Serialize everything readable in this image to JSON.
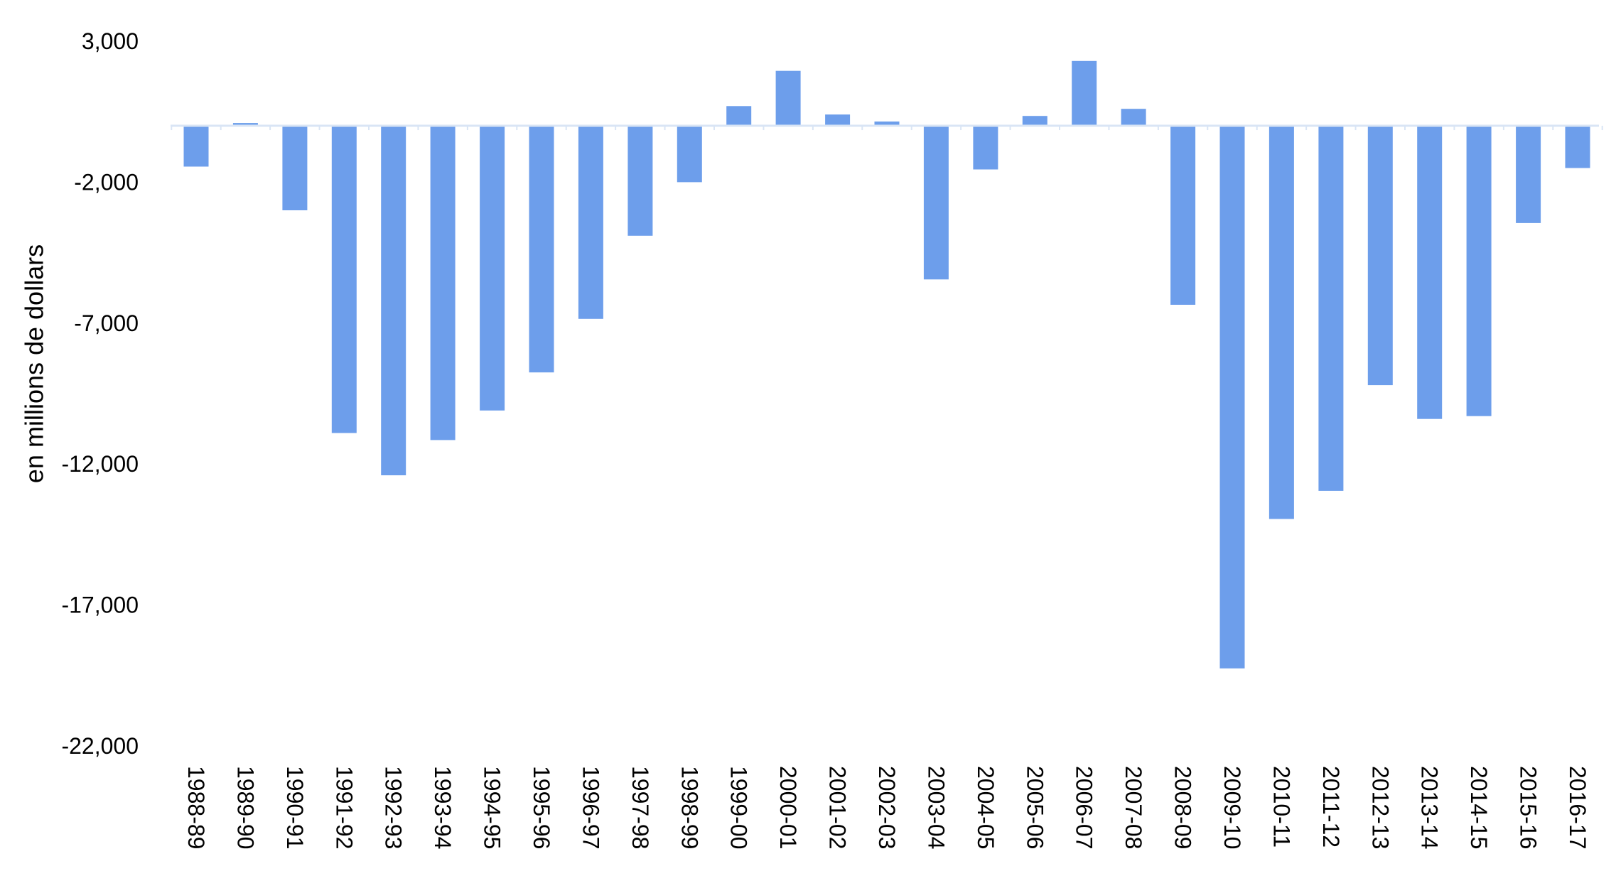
{
  "chart_data": {
    "type": "bar",
    "title": "",
    "xlabel": "",
    "ylabel": "en millions de dollars",
    "ylim": [
      -22000,
      3000
    ],
    "yticks": [
      3000,
      -2000,
      -7000,
      -12000,
      -17000,
      -22000
    ],
    "ytick_labels": [
      "3,000",
      "-2,000",
      "-7,000",
      "-12,000",
      "-17,000",
      "-22,000"
    ],
    "grid": false,
    "legend": "none",
    "bar_color": "#6d9eeb",
    "axis_color": "#d9e5f5",
    "categories": [
      "1988-89",
      "1989-90",
      "1990-91",
      "1991-92",
      "1992-93",
      "1993-94",
      "1994-95",
      "1995-96",
      "1996-97",
      "1997-98",
      "1998-99",
      "1999-00",
      "2000-01",
      "2001-02",
      "2002-03",
      "2003-04",
      "2004-05",
      "2005-06",
      "2006-07",
      "2007-08",
      "2008-09",
      "2009-10",
      "2010-11",
      "2011-12",
      "2012-13",
      "2013-14",
      "2014-15",
      "2015-16",
      "2016-17"
    ],
    "values": [
      -1450,
      100,
      -3000,
      -10900,
      -12400,
      -11150,
      -10100,
      -8750,
      -6850,
      -3900,
      -2000,
      700,
      1950,
      400,
      150,
      -5450,
      -1550,
      350,
      2300,
      600,
      -6350,
      -19250,
      -13950,
      -12950,
      -9200,
      -10400,
      -10300,
      -3450,
      -1500
    ]
  }
}
